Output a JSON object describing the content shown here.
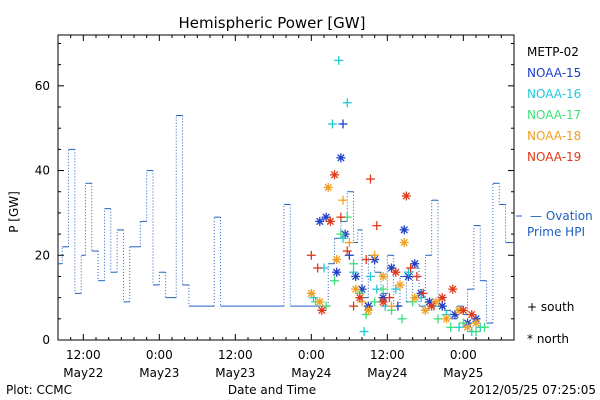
{
  "chart_data": {
    "type": "scatter",
    "title": "Hemispheric Power [GW]",
    "ylabel": "P [GW]",
    "xlabel": "Date and Time",
    "ylim": [
      0,
      72
    ],
    "xlim_hours": [
      0,
      108
    ],
    "yticks": [
      0,
      20,
      40,
      60
    ],
    "xticks": [
      {
        "h": 6,
        "l1": "12:00",
        "l2": "May22"
      },
      {
        "h": 24,
        "l1": "0:00",
        "l2": "May23"
      },
      {
        "h": 42,
        "l1": "12:00",
        "l2": "May23"
      },
      {
        "h": 60,
        "l1": "0:00",
        "l2": "May24"
      },
      {
        "h": 78,
        "l1": "12:00",
        "l2": "May24"
      },
      {
        "h": 96,
        "l1": "0:00",
        "l2": "May25"
      }
    ],
    "legend": {
      "satellites": [
        {
          "name": "METP-02",
          "color": "#000000"
        },
        {
          "name": "NOAA-15",
          "color": "#1f3fc8"
        },
        {
          "name": "NOAA-16",
          "color": "#22c8d8"
        },
        {
          "name": "NOAA-17",
          "color": "#3ee07a"
        },
        {
          "name": "NOAA-18",
          "color": "#f0a020"
        },
        {
          "name": "NOAA-19",
          "color": "#e03818"
        }
      ],
      "ovation_line1": "— Ovation",
      "ovation_line2": "Prime HPI",
      "ovation_color": "#2060c0",
      "south": "+ south",
      "north": "* north"
    },
    "footer_left": "Plot: CCMC",
    "footer_right": "2012/05/25 07:25:05",
    "ovation": [
      [
        0,
        18
      ],
      [
        1,
        22
      ],
      [
        2.5,
        45
      ],
      [
        4,
        11
      ],
      [
        5.5,
        20
      ],
      [
        6.5,
        37
      ],
      [
        8,
        21
      ],
      [
        9.5,
        14
      ],
      [
        11,
        31
      ],
      [
        12.5,
        16
      ],
      [
        14,
        26
      ],
      [
        15.5,
        9
      ],
      [
        17,
        22
      ],
      [
        19.5,
        28
      ],
      [
        21,
        40
      ],
      [
        22.5,
        13
      ],
      [
        24,
        16
      ],
      [
        25.5,
        10
      ],
      [
        28,
        53
      ],
      [
        29.5,
        13
      ],
      [
        31,
        8
      ],
      [
        37,
        29
      ],
      [
        38.5,
        8
      ],
      [
        47,
        8
      ],
      [
        52,
        8
      ],
      [
        53.5,
        32
      ],
      [
        55,
        8
      ],
      [
        62,
        8
      ],
      [
        64,
        18
      ],
      [
        65.5,
        24
      ],
      [
        67,
        28
      ],
      [
        68.5,
        35
      ],
      [
        70,
        23
      ],
      [
        71,
        26
      ],
      [
        72,
        10
      ],
      [
        73.5,
        20
      ],
      [
        75,
        16
      ],
      [
        76.5,
        11
      ],
      [
        78,
        20
      ],
      [
        79.5,
        8
      ],
      [
        81,
        15
      ],
      [
        82.5,
        9
      ],
      [
        84,
        17
      ],
      [
        85.5,
        8
      ],
      [
        87,
        20
      ],
      [
        88.5,
        33
      ],
      [
        90,
        10
      ],
      [
        91.5,
        7
      ],
      [
        93,
        5
      ],
      [
        94.5,
        8
      ],
      [
        96,
        6
      ],
      [
        97,
        12
      ],
      [
        98.5,
        27
      ],
      [
        100,
        14
      ],
      [
        101.5,
        4
      ],
      [
        103,
        37
      ],
      [
        104.5,
        32
      ],
      [
        106,
        23
      ],
      [
        107.5,
        23
      ]
    ],
    "series": [
      {
        "name": "NOAA-15",
        "color": "#1f3fc8",
        "points": [
          [
            62,
            28,
            "n"
          ],
          [
            63.5,
            29,
            "n"
          ],
          [
            66,
            16,
            "n"
          ],
          [
            67,
            43,
            "n"
          ],
          [
            67.5,
            51,
            "s"
          ],
          [
            68,
            25,
            "n"
          ],
          [
            69,
            20,
            "s"
          ],
          [
            70.5,
            15,
            "n"
          ],
          [
            72,
            12,
            "n"
          ],
          [
            73.5,
            8,
            "n"
          ],
          [
            75,
            19,
            "n"
          ],
          [
            77,
            10,
            "n"
          ],
          [
            79,
            17,
            "n"
          ],
          [
            80.5,
            8,
            "s"
          ],
          [
            82,
            26,
            "n"
          ],
          [
            83,
            15,
            "n"
          ],
          [
            84.5,
            18,
            "n"
          ],
          [
            86,
            11,
            "n"
          ],
          [
            88,
            9,
            "n"
          ],
          [
            91,
            8,
            "n"
          ],
          [
            94,
            6,
            "n"
          ],
          [
            97,
            4,
            "n"
          ],
          [
            99,
            5,
            "n"
          ]
        ]
      },
      {
        "name": "NOAA-16",
        "color": "#22c8d8",
        "points": [
          [
            60.5,
            10,
            "s"
          ],
          [
            63,
            17,
            "s"
          ],
          [
            65,
            51,
            "s"
          ],
          [
            66.5,
            66,
            "s"
          ],
          [
            67.5,
            24,
            "s"
          ],
          [
            68.5,
            56,
            "s"
          ],
          [
            70,
            16,
            "s"
          ],
          [
            71.5,
            10,
            "s"
          ],
          [
            72.5,
            2,
            "s"
          ],
          [
            74,
            15,
            "s"
          ],
          [
            75.5,
            12,
            "s"
          ],
          [
            77.5,
            8,
            "s"
          ],
          [
            80,
            12,
            "s"
          ],
          [
            83,
            16,
            "s"
          ],
          [
            86,
            10,
            "s"
          ],
          [
            89,
            8,
            "s"
          ],
          [
            92,
            6,
            "s"
          ],
          [
            95,
            3,
            "s"
          ],
          [
            98,
            2,
            "s"
          ],
          [
            100,
            3,
            "s"
          ]
        ]
      },
      {
        "name": "NOAA-17",
        "color": "#3ee07a",
        "points": [
          [
            61,
            9,
            "s"
          ],
          [
            63.5,
            8,
            "s"
          ],
          [
            65.5,
            14,
            "s"
          ],
          [
            67,
            25,
            "s"
          ],
          [
            68.5,
            29,
            "s"
          ],
          [
            70,
            18,
            "s"
          ],
          [
            71.5,
            11,
            "s"
          ],
          [
            73,
            6,
            "s"
          ],
          [
            75,
            9,
            "s"
          ],
          [
            77,
            12,
            "s"
          ],
          [
            79,
            7,
            "s"
          ],
          [
            81.5,
            5,
            "s"
          ],
          [
            84,
            9,
            "s"
          ],
          [
            87,
            7,
            "s"
          ],
          [
            90,
            5,
            "s"
          ],
          [
            93,
            3,
            "s"
          ],
          [
            96,
            4,
            "s"
          ],
          [
            99,
            2,
            "s"
          ],
          [
            101,
            3,
            "s"
          ]
        ]
      },
      {
        "name": "NOAA-18",
        "color": "#f0a020",
        "points": [
          [
            60,
            11,
            "n"
          ],
          [
            62,
            9,
            "n"
          ],
          [
            64,
            36,
            "n"
          ],
          [
            66,
            19,
            "n"
          ],
          [
            67.5,
            33,
            "s"
          ],
          [
            69,
            23,
            "s"
          ],
          [
            70.5,
            12,
            "n"
          ],
          [
            72,
            9,
            "s"
          ],
          [
            73.5,
            7,
            "n"
          ],
          [
            75,
            20,
            "s"
          ],
          [
            77,
            15,
            "n"
          ],
          [
            79,
            8,
            "s"
          ],
          [
            81,
            13,
            "n"
          ],
          [
            82,
            23,
            "n"
          ],
          [
            84.5,
            10,
            "n"
          ],
          [
            87,
            7,
            "n"
          ],
          [
            89.5,
            9,
            "n"
          ],
          [
            92,
            5,
            "n"
          ],
          [
            95,
            7,
            "n"
          ],
          [
            97,
            3,
            "n"
          ],
          [
            99,
            4,
            "n"
          ]
        ]
      },
      {
        "name": "NOAA-19",
        "color": "#e03818",
        "points": [
          [
            60,
            20,
            "s"
          ],
          [
            61.5,
            17,
            "s"
          ],
          [
            62.5,
            7,
            "n"
          ],
          [
            64.5,
            28,
            "n"
          ],
          [
            65.5,
            39,
            "n"
          ],
          [
            67,
            29,
            "s"
          ],
          [
            68.5,
            21,
            "s"
          ],
          [
            70,
            8,
            "s"
          ],
          [
            71.5,
            10,
            "n"
          ],
          [
            73,
            19,
            "s"
          ],
          [
            74,
            38,
            "s"
          ],
          [
            75.5,
            27,
            "s"
          ],
          [
            77,
            9,
            "n"
          ],
          [
            78.5,
            10,
            "s"
          ],
          [
            80,
            16,
            "n"
          ],
          [
            82.5,
            34,
            "n"
          ],
          [
            83.5,
            17,
            "s"
          ],
          [
            85,
            15,
            "s"
          ],
          [
            86.5,
            11,
            "s"
          ],
          [
            88.5,
            8,
            "n"
          ],
          [
            91,
            10,
            "n"
          ],
          [
            93.5,
            12,
            "n"
          ],
          [
            96,
            7,
            "n"
          ],
          [
            98,
            6,
            "n"
          ]
        ]
      }
    ]
  }
}
